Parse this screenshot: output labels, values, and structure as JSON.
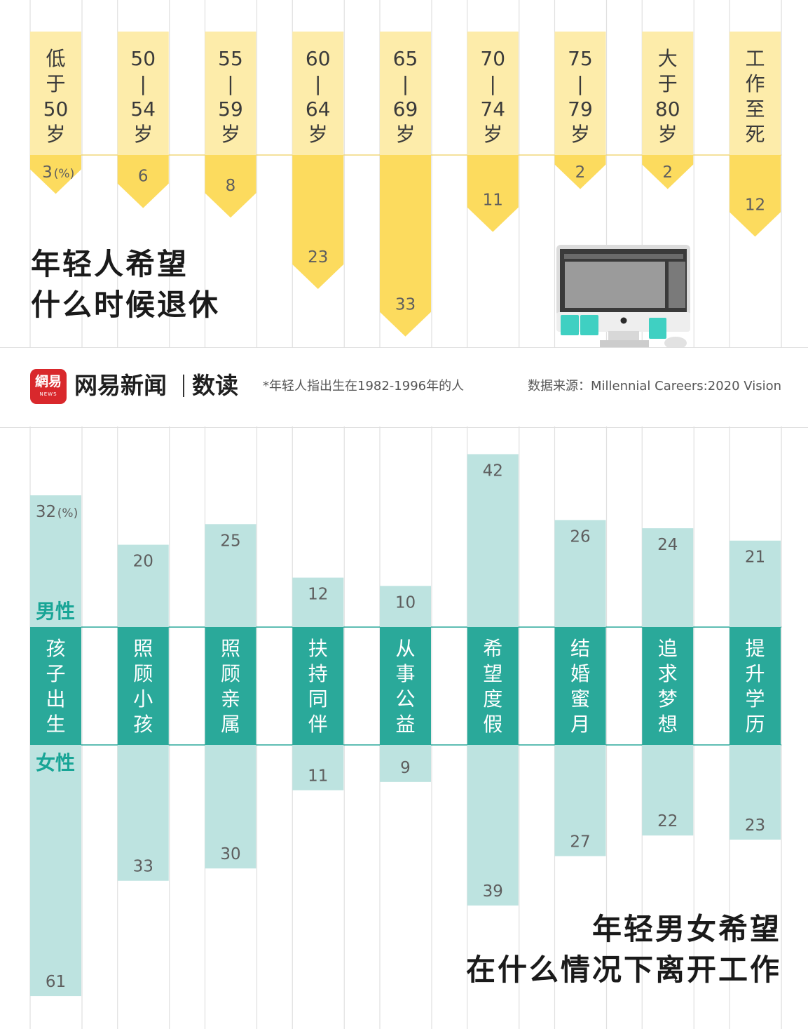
{
  "header": {
    "logo_text": "網易",
    "logo_sub": "NEWS",
    "brand": "网易新闻",
    "brand_section": "数读",
    "note": "*年轻人指出生在1982-1996年的人",
    "source": "数据来源：Millennial Careers:2020 Vision"
  },
  "colors": {
    "yellow_light": "#fdecaa",
    "yellow": "#fcdb5e",
    "teal": "#2aa99a",
    "teal_light": "#bde3e0",
    "grid": "#e0e0e0",
    "value_text": "#5e5e5e",
    "male_label": "#18a596"
  },
  "icons": {
    "computer": "desktop-computer-icon"
  },
  "chart_data": [
    {
      "type": "bar",
      "title": [
        "年轻人希望",
        "什么时候退休"
      ],
      "unit_label": "(%)",
      "categories": [
        [
          "低",
          "于",
          "50",
          "岁"
        ],
        [
          "50",
          "|",
          "54",
          "岁"
        ],
        [
          "55",
          "|",
          "59",
          "岁"
        ],
        [
          "60",
          "|",
          "64",
          "岁"
        ],
        [
          "65",
          "|",
          "69",
          "岁"
        ],
        [
          "70",
          "|",
          "74",
          "岁"
        ],
        [
          "75",
          "|",
          "79",
          "岁"
        ],
        [
          "大",
          "于",
          "80",
          "岁"
        ],
        [
          "工",
          "作",
          "至",
          "死"
        ]
      ],
      "values": [
        3,
        6,
        8,
        23,
        33,
        11,
        2,
        2,
        12
      ]
    },
    {
      "type": "bar",
      "title": [
        "年轻男女希望",
        "在什么情况下离开工作"
      ],
      "unit_label": "(%)",
      "categories": [
        [
          "孩",
          "子",
          "出",
          "生"
        ],
        [
          "照",
          "顾",
          "小",
          "孩"
        ],
        [
          "照",
          "顾",
          "亲",
          "属"
        ],
        [
          "扶",
          "持",
          "同",
          "伴"
        ],
        [
          "从",
          "事",
          "公",
          "益"
        ],
        [
          "希",
          "望",
          "度",
          "假"
        ],
        [
          "结",
          "婚",
          "蜜",
          "月"
        ],
        [
          "追",
          "求",
          "梦",
          "想"
        ],
        [
          "提",
          "升",
          "学",
          "历"
        ]
      ],
      "series": [
        {
          "name": "男性",
          "values": [
            32,
            20,
            25,
            12,
            10,
            42,
            26,
            24,
            21
          ]
        },
        {
          "name": "女性",
          "values": [
            61,
            33,
            30,
            11,
            9,
            39,
            27,
            22,
            23
          ]
        }
      ]
    }
  ]
}
